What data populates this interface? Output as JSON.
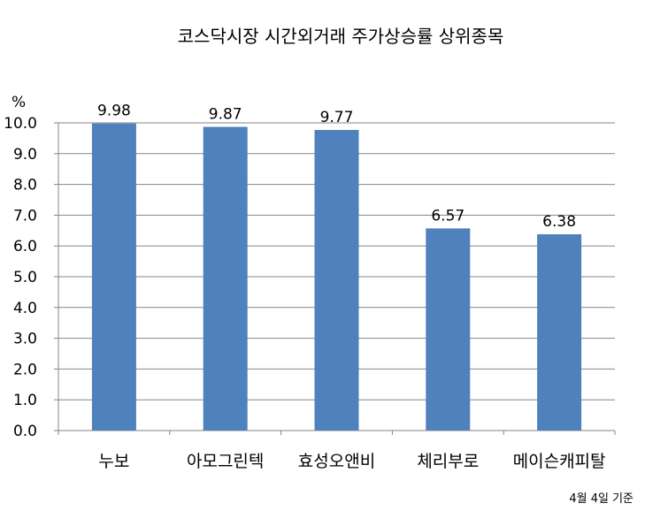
{
  "chart_data": {
    "type": "bar",
    "title": "코스닥시장 시간외거래  주가상승률 상위종목",
    "y_unit": "%",
    "note": "4월 4일 기준",
    "categories": [
      "누보",
      "아모그린텍",
      "효성오앤비",
      "체리부로",
      "메이슨캐피탈"
    ],
    "values": [
      9.98,
      9.87,
      9.77,
      6.57,
      6.38
    ],
    "value_labels": [
      "9.98",
      "9.87",
      "9.77",
      "6.57",
      "6.38"
    ],
    "ylim": [
      0,
      10
    ],
    "y_ticks": [
      "0.0",
      "1.0",
      "2.0",
      "3.0",
      "4.0",
      "5.0",
      "6.0",
      "7.0",
      "8.0",
      "9.0",
      "10.0"
    ],
    "grid": true,
    "legend": "none",
    "bar_color": "#4F81BD",
    "grid_color": "#868686"
  }
}
